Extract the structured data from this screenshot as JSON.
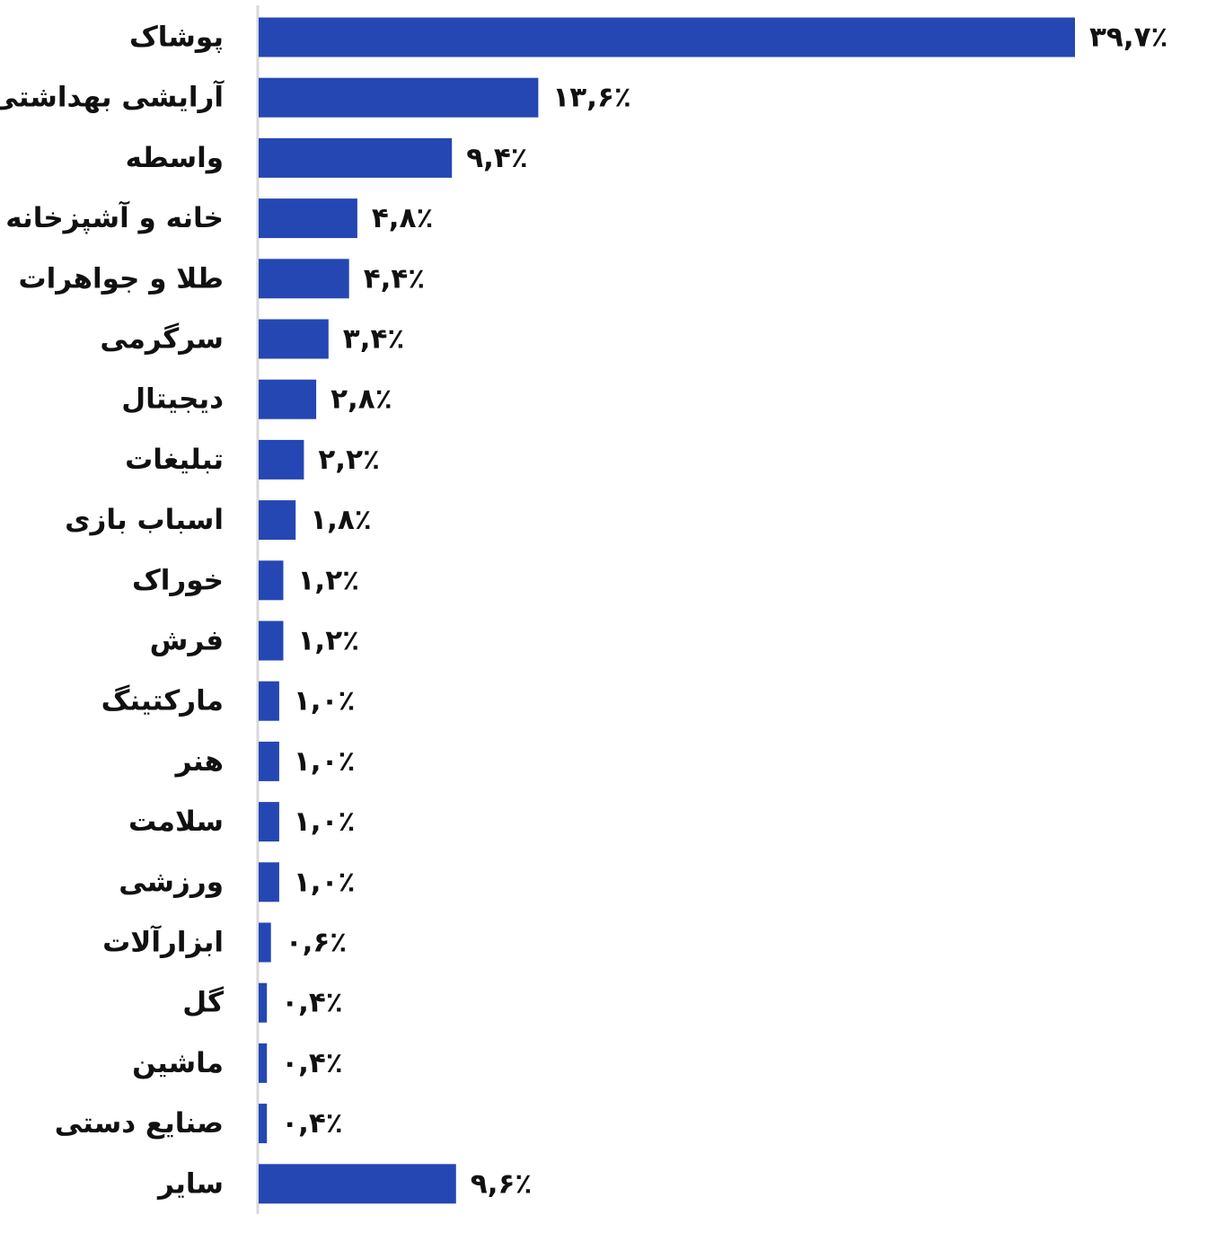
{
  "chart_data": {
    "type": "bar",
    "orientation": "horizontal",
    "categories": [
      "پوشاک",
      "آرایشی بهداشتی",
      "واسطه",
      "خانه و آشپزخانه",
      "طلا و جواهرات",
      "سرگرمی",
      "دیجیتال",
      "تبلیغات",
      "اسباب بازی",
      "خوراک",
      "فرش",
      "مارکتینگ",
      "هنر",
      "سلامت",
      "ورزشی",
      "ابزارآلات",
      "گل",
      "ماشین",
      "صنایع دستی",
      "سایر"
    ],
    "values": [
      39.7,
      13.6,
      9.4,
      4.8,
      4.4,
      3.4,
      2.8,
      2.2,
      1.8,
      1.2,
      1.2,
      1.0,
      1.0,
      1.0,
      1.0,
      0.6,
      0.4,
      0.4,
      0.4,
      9.6
    ],
    "value_labels": [
      "۳۹,۷٪",
      "۱۳,۶٪",
      "۹,۴٪",
      "۴,۸٪",
      "۴,۴٪",
      "۳,۴٪",
      "۲,۸٪",
      "۲,۲٪",
      "۱,۸٪",
      "۱,۲٪",
      "۱,۲٪",
      "۱,۰٪",
      "۱,۰٪",
      "۱,۰٪",
      "۱,۰٪",
      "۰,۶٪",
      "۰,۴٪",
      "۰,۴٪",
      "۰,۴٪",
      "۹,۶٪"
    ],
    "bar_color": "#2547b3",
    "axis_color": "#d9d9d9",
    "unit": "%",
    "xlim": [
      0,
      39.7
    ],
    "grid": false,
    "legend": "none",
    "title": "",
    "xlabel": "",
    "ylabel": ""
  }
}
